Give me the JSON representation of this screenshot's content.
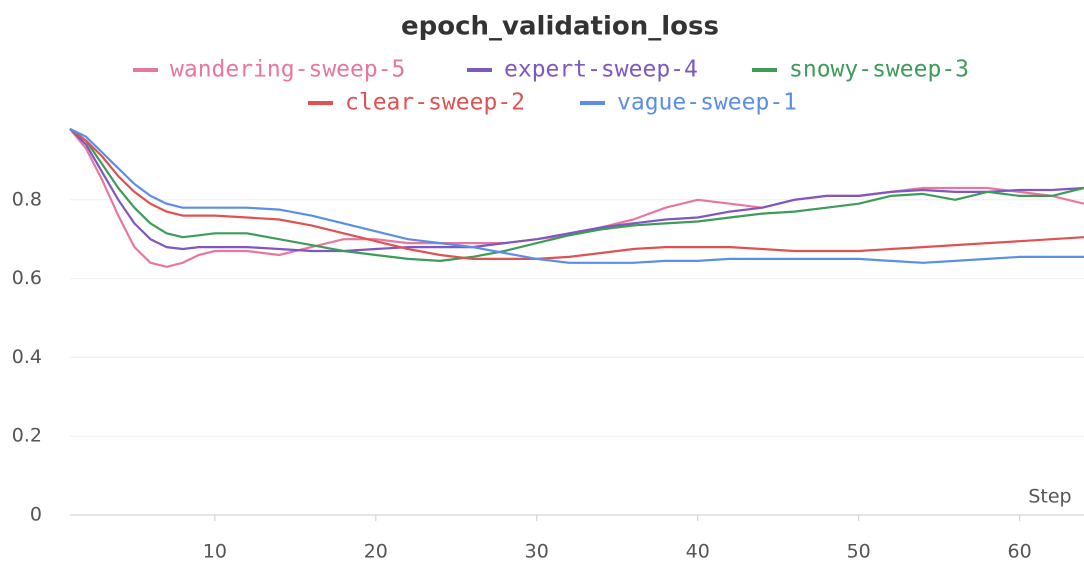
{
  "chart_data": {
    "type": "line",
    "title": "epoch_validation_loss",
    "x_label": "Step",
    "x": [
      1,
      2,
      3,
      4,
      5,
      6,
      7,
      8,
      9,
      10,
      12,
      14,
      16,
      18,
      20,
      22,
      24,
      26,
      28,
      30,
      32,
      34,
      36,
      38,
      40,
      42,
      44,
      46,
      48,
      50,
      52,
      54,
      56,
      58,
      60,
      62,
      64
    ],
    "series": [
      {
        "name": "wandering-sweep-5",
        "color": "#e8779e",
        "values": [
          0.98,
          0.93,
          0.85,
          0.76,
          0.68,
          0.64,
          0.63,
          0.64,
          0.66,
          0.67,
          0.67,
          0.66,
          0.68,
          0.7,
          0.7,
          0.69,
          0.69,
          0.69,
          0.69,
          0.7,
          0.71,
          0.73,
          0.75,
          0.78,
          0.8,
          0.79,
          0.78,
          0.8,
          0.81,
          0.81,
          0.82,
          0.83,
          0.83,
          0.83,
          0.82,
          0.81,
          0.79
        ]
      },
      {
        "name": "expert-sweep-4",
        "color": "#7e57c2",
        "values": [
          0.98,
          0.94,
          0.87,
          0.8,
          0.74,
          0.7,
          0.68,
          0.675,
          0.68,
          0.68,
          0.68,
          0.675,
          0.67,
          0.67,
          0.675,
          0.68,
          0.68,
          0.68,
          0.69,
          0.7,
          0.715,
          0.73,
          0.74,
          0.75,
          0.755,
          0.77,
          0.78,
          0.8,
          0.81,
          0.81,
          0.82,
          0.825,
          0.82,
          0.82,
          0.825,
          0.825,
          0.83
        ]
      },
      {
        "name": "snowy-sweep-3",
        "color": "#3f9b5a",
        "values": [
          0.98,
          0.95,
          0.89,
          0.83,
          0.78,
          0.74,
          0.715,
          0.705,
          0.71,
          0.715,
          0.715,
          0.7,
          0.685,
          0.67,
          0.66,
          0.65,
          0.645,
          0.655,
          0.67,
          0.69,
          0.71,
          0.725,
          0.735,
          0.74,
          0.745,
          0.755,
          0.765,
          0.77,
          0.78,
          0.79,
          0.81,
          0.815,
          0.8,
          0.82,
          0.81,
          0.81,
          0.83
        ]
      },
      {
        "name": "clear-sweep-2",
        "color": "#e05252",
        "values": [
          0.98,
          0.95,
          0.91,
          0.86,
          0.82,
          0.79,
          0.77,
          0.76,
          0.76,
          0.76,
          0.755,
          0.75,
          0.735,
          0.715,
          0.695,
          0.675,
          0.66,
          0.65,
          0.65,
          0.65,
          0.655,
          0.665,
          0.675,
          0.68,
          0.68,
          0.68,
          0.675,
          0.67,
          0.67,
          0.67,
          0.675,
          0.68,
          0.685,
          0.69,
          0.695,
          0.7,
          0.705
        ]
      },
      {
        "name": "vague-sweep-1",
        "color": "#5b8ee6",
        "values": [
          0.98,
          0.96,
          0.92,
          0.88,
          0.84,
          0.81,
          0.79,
          0.78,
          0.78,
          0.78,
          0.78,
          0.775,
          0.76,
          0.74,
          0.72,
          0.7,
          0.69,
          0.68,
          0.665,
          0.65,
          0.64,
          0.64,
          0.64,
          0.645,
          0.645,
          0.65,
          0.65,
          0.65,
          0.65,
          0.65,
          0.645,
          0.64,
          0.645,
          0.65,
          0.655,
          0.655,
          0.655
        ]
      }
    ],
    "xlim": [
      1,
      64
    ],
    "xticks": [
      10,
      20,
      30,
      40,
      50,
      60
    ],
    "ylim": [
      0,
      1
    ],
    "yticks": [
      0,
      0.2,
      0.4,
      0.6,
      0.8
    ],
    "grid": true
  }
}
